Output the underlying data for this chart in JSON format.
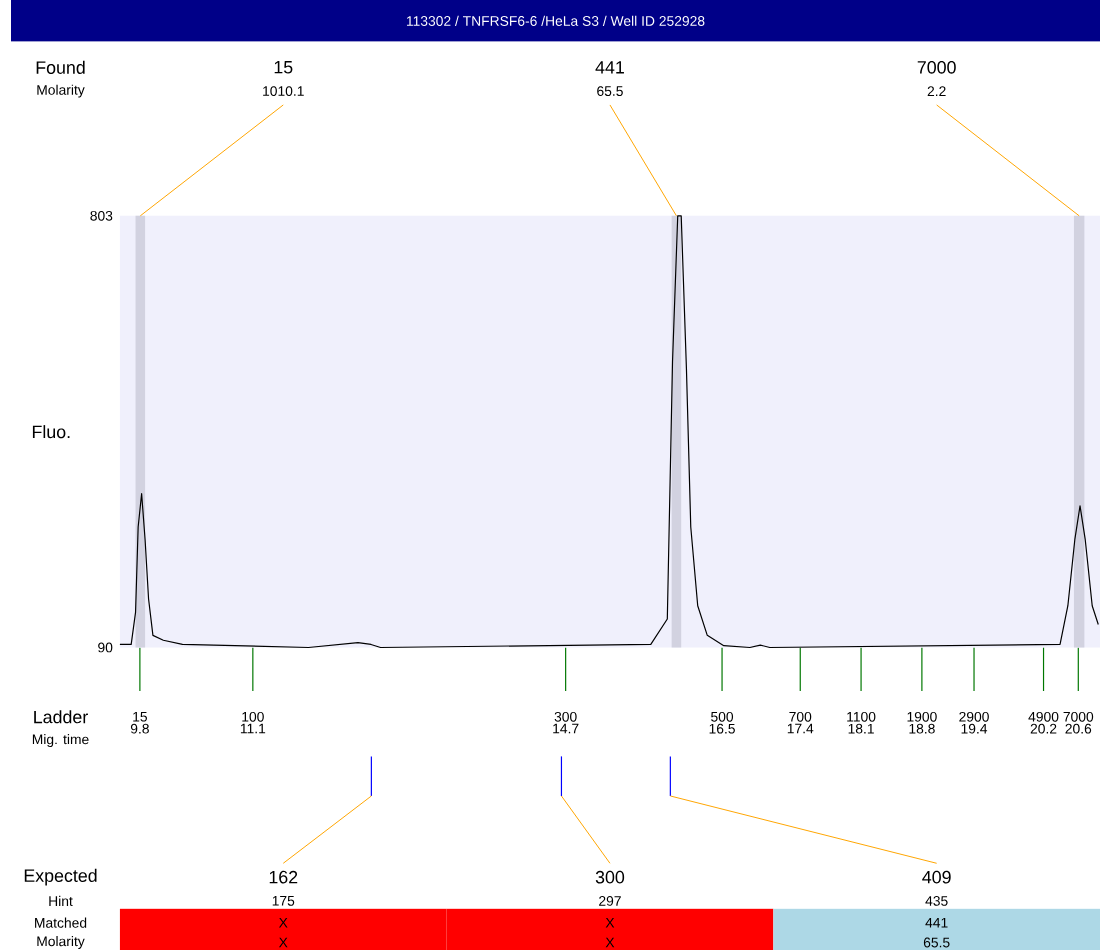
{
  "chart_data": {
    "type": "line",
    "title": "113302 / TNFRSF6-6 /HeLa S3 / Well ID 252928",
    "ylabel": "Fluo.",
    "x": [
      9.57,
      9.7,
      9.75,
      9.78,
      9.82,
      9.86,
      9.9,
      9.95,
      10.07,
      10.29,
      11.74,
      12.31,
      12.46,
      12.57,
      15.68,
      15.87,
      15.93,
      15.99,
      16.03,
      16.09,
      16.14,
      16.22,
      16.33,
      16.52,
      16.82,
      16.94,
      17.05,
      20.39,
      20.48,
      20.56,
      20.62,
      20.68,
      20.76,
      20.83
    ],
    "values": [
      95,
      95,
      148,
      289,
      344,
      268,
      170,
      110,
      102,
      95,
      90,
      98,
      95,
      90,
      95,
      137,
      562,
      803,
      803,
      551,
      289,
      159,
      110,
      93,
      90,
      94,
      90,
      95,
      159,
      268,
      324,
      268,
      159,
      128
    ],
    "color": "#000000",
    "xlim": [
      9.57,
      20.85
    ],
    "ylim": [
      90,
      803
    ],
    "xticks": [
      9.8,
      11.1,
      14.7,
      16.5,
      17.4,
      18.1,
      18.8,
      19.4,
      20.2,
      20.6
    ],
    "yticks": [
      90,
      803
    ],
    "grid": false,
    "marker": "none",
    "line_style": "solid",
    "bands": [
      {
        "axis": "x",
        "from": 9.75,
        "to": 9.86,
        "color": "#d2d2e0"
      },
      {
        "axis": "x",
        "from": 15.92,
        "to": 16.03,
        "color": "#d2d2e0"
      },
      {
        "axis": "x",
        "from": 20.55,
        "to": 20.67,
        "color": "#d2d2e0"
      }
    ],
    "annotations": [
      "Found",
      "Molarity",
      "Ladder",
      "Mig. time",
      "Expected",
      "Hint",
      "Matched",
      "Molarity",
      "15",
      "441",
      "7000",
      "1010.1",
      "65.5",
      "2.2",
      "15",
      "100",
      "300",
      "500",
      "700",
      "1100",
      "1900",
      "2900",
      "4900",
      "7000",
      "162",
      "300",
      "409",
      "175",
      "297",
      "435",
      "X",
      "X",
      "441",
      "X",
      "X",
      "65.5"
    ]
  }
}
